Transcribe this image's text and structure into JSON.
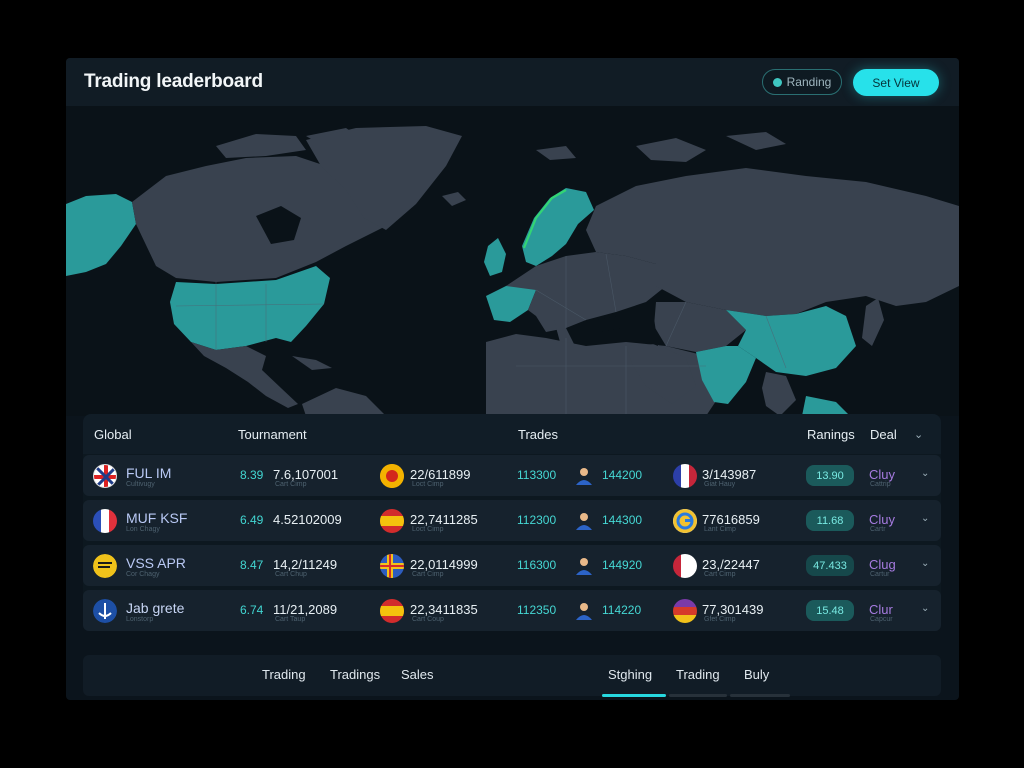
{
  "header": {
    "title": "Trading leaderboard",
    "ranking_label": "Randing",
    "set_view_label": "Set View"
  },
  "table": {
    "columns": [
      "Global",
      "Tournament",
      "Trades",
      "Ranings",
      "Deal"
    ],
    "rows": [
      {
        "name": "FUL IM",
        "sub": "Cultivugy",
        "v1": "8.39",
        "v2": "7.6,107001",
        "v2_sub": "Cart Cimp",
        "v3": "22/611899",
        "v3_sub": "Loct Cimp",
        "trades": "113300",
        "v4": "144200",
        "v5": "3/143987",
        "v5_sub": "Giat Hauy",
        "rank": "13.90",
        "deal": "Cluy",
        "deal_sub": "Cattrip"
      },
      {
        "name": "MUF KSF",
        "sub": "Lon Chagy",
        "v1": "6.49",
        "v2": "4.52102009",
        "v2_sub": "",
        "v3": "22,7411285",
        "v3_sub": "Loct Cimp",
        "trades": "112300",
        "v4": "144300",
        "v5": "77616859",
        "v5_sub": "Lant Cimp",
        "rank": "11.68",
        "deal": "Cluy",
        "deal_sub": "Cartr"
      },
      {
        "name": "VSS APR",
        "sub": "Cor Chagy",
        "v1": "8.47",
        "v2": "14,2/11249",
        "v2_sub": "Cart Chup",
        "v3": "22,0114999",
        "v3_sub": "Cart Cimp",
        "trades": "116300",
        "v4": "144920",
        "v5": "23,/22447",
        "v5_sub": "Cart Cimp",
        "rank": "47.433",
        "deal": "Clug",
        "deal_sub": "Cartur"
      },
      {
        "name": "Jab grete",
        "sub": "Lonstorp",
        "v1": "6.74",
        "v2": "11/21,2089",
        "v2_sub": "Cart Taup",
        "v3": "22,3411835",
        "v3_sub": "Cart Coup",
        "trades": "112350",
        "v4": "114220",
        "v5": "77,301439",
        "v5_sub": "Gfet Cimp",
        "rank": "15.48",
        "deal": "Clur",
        "deal_sub": "Capcur"
      }
    ]
  },
  "bottom_tabs": {
    "left": [
      "Trading",
      "Tradings",
      "Sales"
    ],
    "right": [
      "Stghing",
      "Trading",
      "Buly"
    ]
  },
  "colors": {
    "accent": "#27e1ea",
    "highlight_land": "#2a9a9a",
    "land": "#39424f",
    "deal": "#a67be0"
  },
  "icons": {
    "ranking": "dot-icon",
    "row_toggle": "chevron-down-icon",
    "trader": "person-icon"
  }
}
